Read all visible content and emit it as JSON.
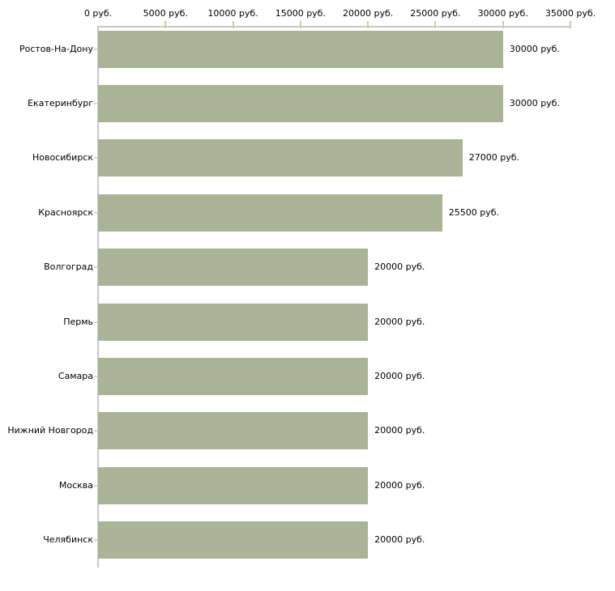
{
  "chart_data": {
    "type": "bar",
    "orientation": "horizontal",
    "title": "",
    "categories": [
      "Ростов-На-Дону",
      "Екатеринбург",
      "Новосибирск",
      "Красноярск",
      "Волгоград",
      "Пермь",
      "Самара",
      "Нижний Новгород",
      "Москва",
      "Челябинск"
    ],
    "values": [
      30000,
      30000,
      27000,
      25500,
      20000,
      20000,
      20000,
      20000,
      20000,
      20000
    ],
    "bar_labels": [
      "30000 руб.",
      "30000 руб.",
      "27000 руб.",
      "25500 руб.",
      "20000 руб.",
      "20000 руб.",
      "20000 руб.",
      "20000 руб.",
      "20000 руб.",
      "20000 руб."
    ],
    "x_axis": {
      "position": "top",
      "range": [
        0,
        35000
      ],
      "ticks": [
        0,
        5000,
        10000,
        15000,
        20000,
        25000,
        30000,
        35000
      ],
      "tick_labels": [
        "0 руб.",
        "5000 руб.",
        "10000 руб.",
        "15000 руб.",
        "20000 руб.",
        "25000 руб.",
        "30000 руб.",
        "35000 руб."
      ]
    },
    "grid": false,
    "legend": false,
    "colors": {
      "bar": "#aab396",
      "axis_line": "#c9c9c9",
      "axis_tick": "#cbd0a0",
      "category_tick": "#d5d8c0",
      "text": "#000000"
    }
  }
}
